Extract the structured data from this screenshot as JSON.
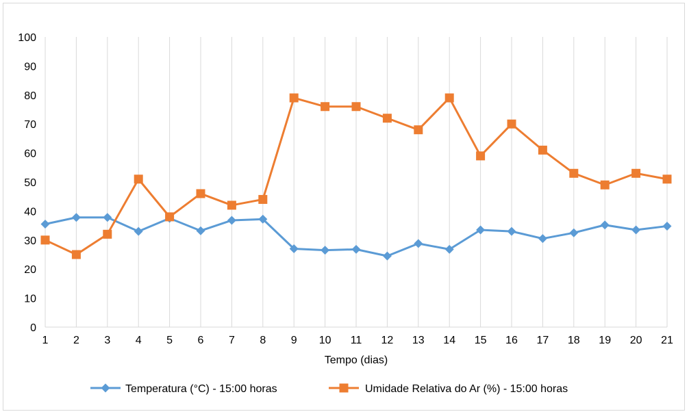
{
  "chart_data": {
    "type": "line",
    "x": [
      "1",
      "2",
      "3",
      "4",
      "5",
      "6",
      "7",
      "8",
      "9",
      "10",
      "11",
      "12",
      "13",
      "14",
      "15",
      "16",
      "17",
      "18",
      "19",
      "20",
      "21"
    ],
    "ylim": [
      0,
      100
    ],
    "yticks": [
      0,
      10,
      20,
      30,
      40,
      50,
      60,
      70,
      80,
      90,
      100
    ],
    "xlabel": "Tempo (dias)",
    "ylabel": "",
    "grid": "vertical",
    "legend": "bottom",
    "series": [
      {
        "name": "Temperatura (°C) - 15:00 horas",
        "color": "#5b9bd5",
        "marker": "diamond",
        "values": [
          35.5,
          37.8,
          37.8,
          33,
          37.5,
          33.2,
          36.8,
          37.2,
          27,
          26.5,
          26.8,
          24.5,
          28.8,
          26.8,
          33.5,
          33,
          30.5,
          32.5,
          35.2,
          33.5,
          34.8
        ]
      },
      {
        "name": "Umidade Relativa do Ar (%) - 15:00 horas",
        "color": "#ed7d31",
        "marker": "square",
        "values": [
          30,
          25,
          32,
          51,
          38,
          46,
          42,
          44,
          79,
          76,
          76,
          72,
          68,
          79,
          59,
          70,
          61,
          53,
          49,
          53,
          51
        ]
      }
    ]
  }
}
